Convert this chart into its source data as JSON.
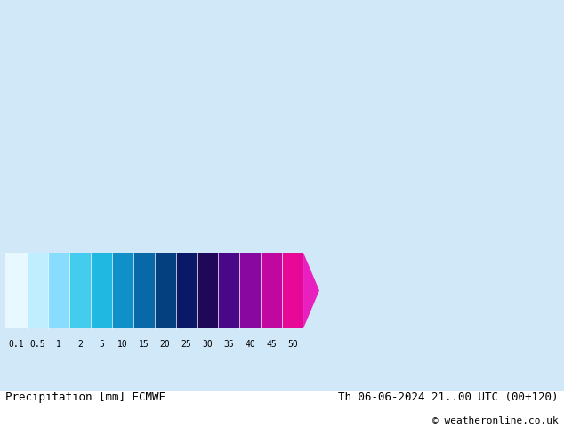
{
  "title_left": "Precipitation [mm] ECMWF",
  "title_right": "Th 06-06-2024 21..00 UTC (00+120)",
  "copyright": "© weatheronline.co.uk",
  "colorbar_tick_labels": [
    "0.1",
    "0.5",
    "1",
    "2",
    "5",
    "10",
    "15",
    "20",
    "25",
    "30",
    "35",
    "40",
    "45",
    "50"
  ],
  "colorbar_colors": [
    "#e8f8ff",
    "#c0eeff",
    "#88ddff",
    "#44ccee",
    "#20b8e0",
    "#1090c8",
    "#0868a8",
    "#044080",
    "#0a1868",
    "#200858",
    "#480888",
    "#8808a0",
    "#c008a0",
    "#e80898"
  ],
  "arrow_color": "#e820c0",
  "bottom_bg": "#ffffff",
  "map_bg_color": [
    208,
    232,
    248
  ],
  "font_family": "monospace",
  "font_size_main": 9,
  "font_size_tick": 7,
  "fig_width": 6.34,
  "fig_height": 4.9,
  "dpi": 100
}
